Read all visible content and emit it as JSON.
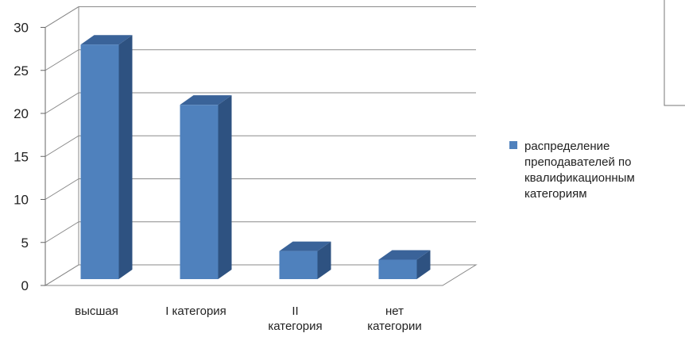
{
  "chart_data": {
    "type": "bar",
    "style": "3d-column",
    "categories": [
      [
        "высшая"
      ],
      [
        "I категория"
      ],
      [
        "II",
        "категория"
      ],
      [
        "нет",
        "категории"
      ]
    ],
    "series": [
      {
        "name": "распределение преподавателей по квалификационным категориям",
        "name_lines": [
          "распределение",
          "преподавателей по",
          "квалификационным",
          "категориям"
        ],
        "values": [
          28,
          21,
          4,
          3
        ],
        "color": "#4f81bd"
      }
    ],
    "y_ticks": [
      "0",
      "5",
      "10",
      "15",
      "20",
      "25",
      "30"
    ],
    "ylim": [
      0,
      30
    ],
    "grid": true,
    "legend_position": "right"
  }
}
